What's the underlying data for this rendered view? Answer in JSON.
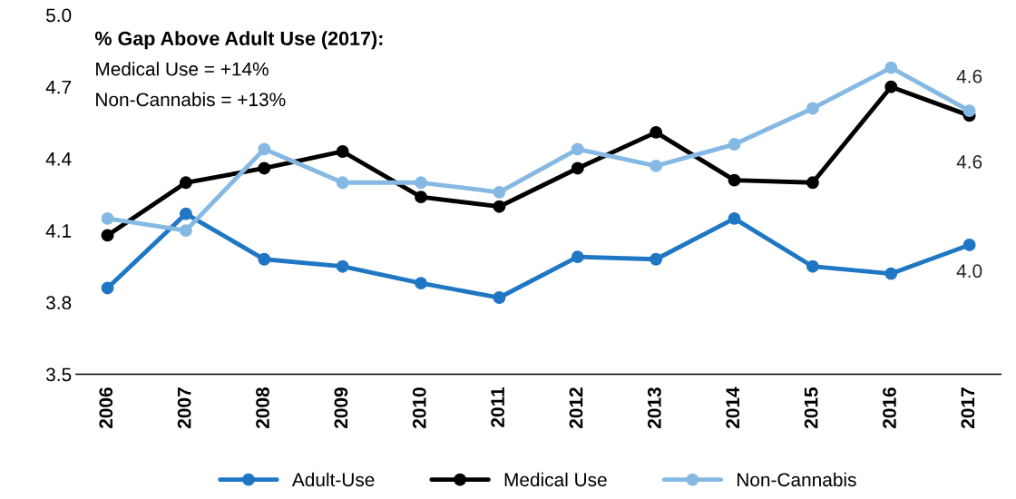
{
  "chart_data": {
    "type": "line",
    "categories": [
      "2006",
      "2007",
      "2008",
      "2009",
      "2010",
      "2011",
      "2012",
      "2013",
      "2014",
      "2015",
      "2016",
      "2017"
    ],
    "series": [
      {
        "name": "Adult-Use",
        "color": "#1f77c4",
        "values": [
          3.86,
          4.17,
          3.98,
          3.95,
          3.88,
          3.82,
          3.99,
          3.98,
          4.15,
          3.95,
          3.92,
          4.04
        ],
        "value_labels": [
          null,
          null,
          null,
          null,
          null,
          null,
          null,
          null,
          null,
          null,
          null,
          "4.0"
        ]
      },
      {
        "name": "Medical Use",
        "color": "#000000",
        "values": [
          4.08,
          4.3,
          4.36,
          4.43,
          4.24,
          4.2,
          4.36,
          4.51,
          4.31,
          4.3,
          4.7,
          4.58
        ],
        "value_labels": [
          null,
          null,
          null,
          null,
          null,
          null,
          null,
          null,
          null,
          null,
          null,
          "4.6"
        ]
      },
      {
        "name": "Non-Cannabis",
        "color": "#85b9e3",
        "values": [
          4.15,
          4.1,
          4.44,
          4.3,
          4.3,
          4.26,
          4.44,
          4.37,
          4.46,
          4.61,
          4.78,
          4.6
        ],
        "value_labels": [
          null,
          null,
          null,
          null,
          null,
          null,
          null,
          null,
          null,
          null,
          null,
          "4.6"
        ]
      }
    ],
    "ylim": [
      3.5,
      5.0
    ],
    "yticks": [
      {
        "value": 3.5,
        "label": "3.5"
      },
      {
        "value": 3.8,
        "label": "3.8"
      },
      {
        "value": 4.1,
        "label": "4.1"
      },
      {
        "value": 4.4,
        "label": "4.4"
      },
      {
        "value": 4.7,
        "label": "4.7"
      },
      {
        "value": 5.0,
        "label": "5.0"
      }
    ],
    "marker": "circle",
    "line_style": "solid",
    "grid": false,
    "legend": "bottom",
    "annotations": [
      "% Gap Above Adult Use (2017):",
      "Medical Use = +14%",
      "Non-Cannabis = +13%"
    ]
  }
}
